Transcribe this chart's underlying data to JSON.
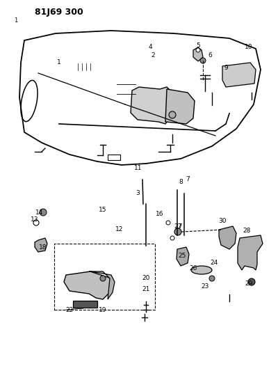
{
  "title": "81J69 300",
  "bg_color": "#ffffff",
  "line_color": "#000000",
  "fig_width": 4.0,
  "fig_height": 5.33,
  "dpi": 100
}
